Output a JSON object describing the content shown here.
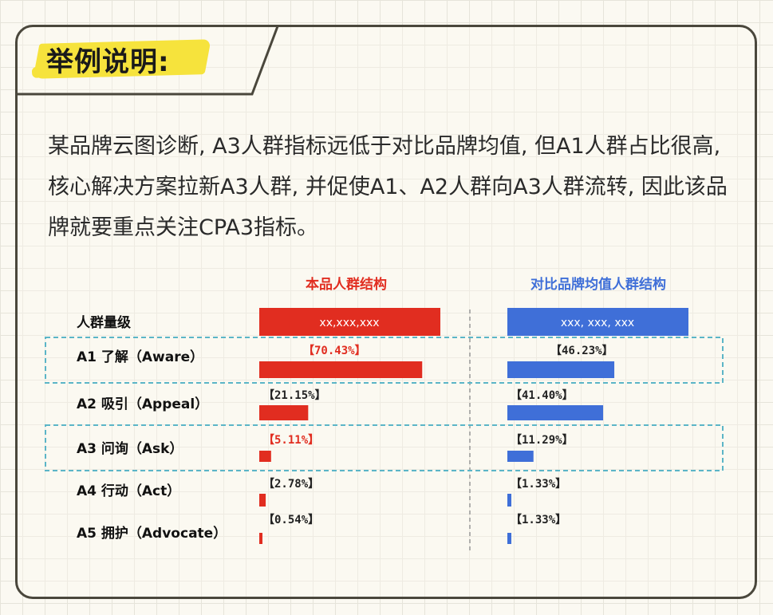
{
  "heading": "举例说明:",
  "intro": "某品牌云图诊断, A3人群指标远低于对比品牌均值, 但A1人群占比很高, 核心解决方案拉新A3人群, 并促使A1、A2人群向A3人群流转, 因此该品牌就要重点关注CPA3指标。",
  "colors": {
    "red": "#e12d20",
    "blue": "#3f6fd8",
    "dash": "#5bb5c7"
  },
  "chart_data": {
    "type": "bar",
    "categories": [
      "A1 了解（Aware）",
      "A2 吸引（Appeal）",
      "A3 问询（Ask）",
      "A4 行动（Act）",
      "A5 拥护（Advocate）"
    ],
    "scale_row": {
      "label": "人群量级",
      "own_value": "xx,xxx,xxx",
      "compare_value": "xxx, xxx, xxx"
    },
    "series": [
      {
        "name": "本品人群结构",
        "values": [
          70.43,
          21.15,
          5.11,
          2.78,
          0.54
        ],
        "labels": [
          "【70.43%】",
          "【21.15%】",
          "【5.11%】",
          "【2.78%】",
          "【0.54%】"
        ]
      },
      {
        "name": "对比品牌均值人群结构",
        "values": [
          46.23,
          41.4,
          11.29,
          1.33,
          1.33
        ],
        "labels": [
          "【46.23%】",
          "【41.40%】",
          "【11.29%】",
          "【1.33%】",
          "【1.33%】"
        ]
      }
    ],
    "highlighted_categories": [
      "A1 了解（Aware）",
      "A3 问询（Ask）"
    ],
    "highlighted_label": {
      "series": 0,
      "category": 2
    },
    "unit": "%"
  }
}
